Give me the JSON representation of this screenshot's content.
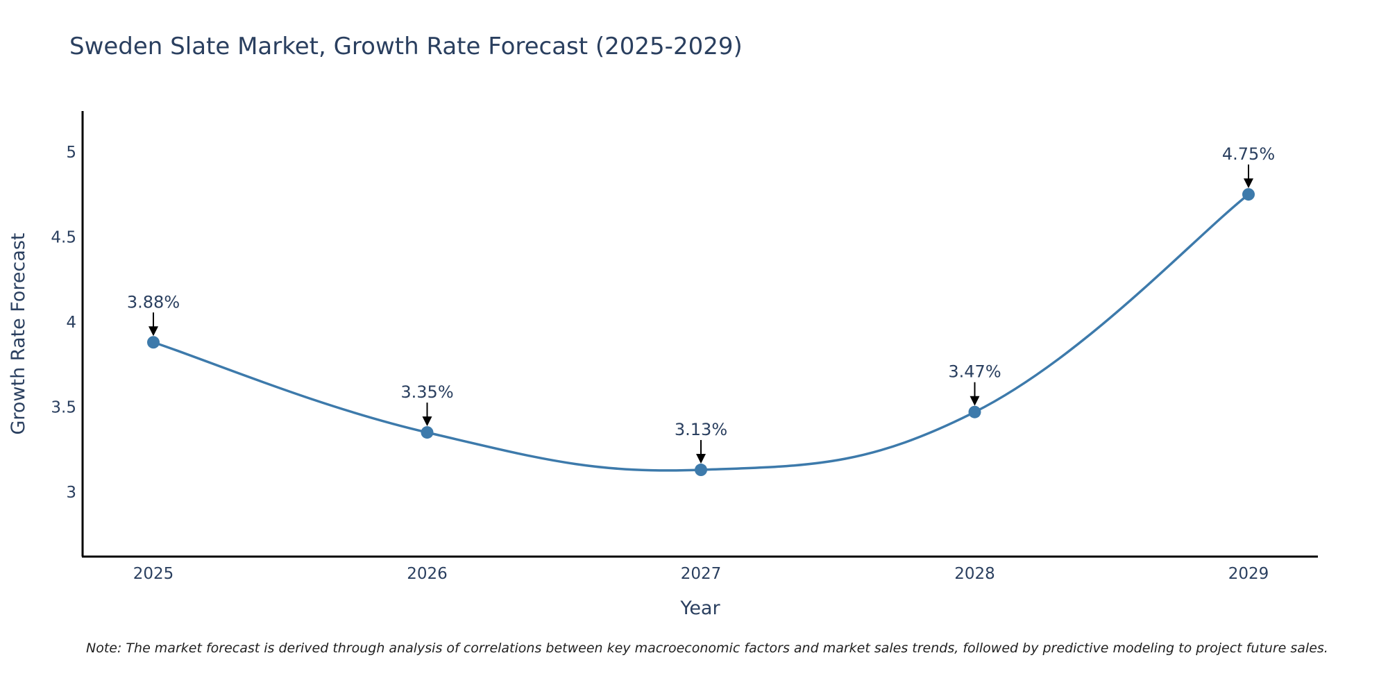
{
  "chart_data": {
    "type": "line",
    "title": "Sweden Slate Market, Growth Rate Forecast (2025-2029)",
    "xlabel": "Year",
    "ylabel": "Growth Rate Forecast",
    "categories": [
      "2025",
      "2026",
      "2027",
      "2028",
      "2029"
    ],
    "values": [
      3.88,
      3.35,
      3.13,
      3.47,
      4.75
    ],
    "data_labels": [
      "3.88%",
      "3.35%",
      "3.13%",
      "3.47%",
      "4.75%"
    ],
    "yticks": [
      "3",
      "3.5",
      "4",
      "4.5",
      "5"
    ],
    "ylim": [
      2.62,
      5.24
    ],
    "line_shape": "spline",
    "grid": false,
    "legend": false,
    "colors": {
      "line": "#3d7aab",
      "marker": "#3d7aab",
      "text": "#2a3f5f",
      "axis": "#000000"
    },
    "note": "Note: The market forecast is derived through analysis of correlations between key macroeconomic factors and market sales trends, followed by predictive modeling to project future sales."
  }
}
